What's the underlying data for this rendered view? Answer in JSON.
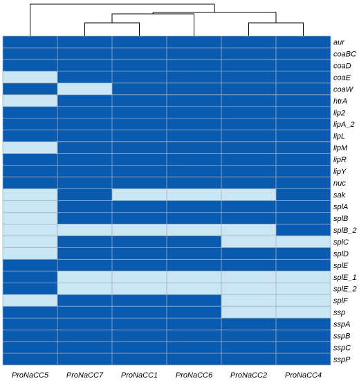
{
  "chart_data": {
    "type": "heatmap",
    "rows": [
      "aur",
      "coaBC",
      "coaD",
      "coaE",
      "coaW",
      "htrA",
      "lip2",
      "lipA_2",
      "lipL",
      "lipM",
      "lipR",
      "lipY",
      "nuc",
      "sak",
      "splA",
      "splB",
      "splB_2",
      "splC",
      "splD",
      "splE",
      "splE_1",
      "splE_2",
      "splF",
      "ssp",
      "sspA",
      "sspB",
      "sspC",
      "sspP"
    ],
    "columns": [
      "ProNaCC5",
      "ProNaCC7",
      "ProNaCC1",
      "ProNaCC6",
      "ProNaCC2",
      "ProNaCC4"
    ],
    "values": [
      [
        1,
        1,
        1,
        1,
        1,
        1
      ],
      [
        1,
        1,
        1,
        1,
        1,
        1
      ],
      [
        1,
        1,
        1,
        1,
        1,
        1
      ],
      [
        0,
        1,
        1,
        1,
        1,
        1
      ],
      [
        1,
        0,
        1,
        1,
        1,
        1
      ],
      [
        0,
        1,
        1,
        1,
        1,
        1
      ],
      [
        1,
        1,
        1,
        1,
        1,
        1
      ],
      [
        1,
        1,
        1,
        1,
        1,
        1
      ],
      [
        1,
        1,
        1,
        1,
        1,
        1
      ],
      [
        0,
        1,
        1,
        1,
        1,
        1
      ],
      [
        1,
        1,
        1,
        1,
        1,
        1
      ],
      [
        1,
        1,
        1,
        1,
        1,
        1
      ],
      [
        1,
        1,
        1,
        1,
        1,
        1
      ],
      [
        0,
        1,
        0,
        0,
        0,
        1
      ],
      [
        0,
        1,
        1,
        1,
        1,
        1
      ],
      [
        0,
        1,
        1,
        1,
        1,
        1
      ],
      [
        0,
        0,
        0,
        0,
        0,
        1
      ],
      [
        0,
        1,
        1,
        1,
        0,
        0
      ],
      [
        0,
        1,
        1,
        1,
        1,
        1
      ],
      [
        1,
        1,
        1,
        1,
        1,
        1
      ],
      [
        1,
        0,
        0,
        0,
        0,
        0
      ],
      [
        1,
        0,
        0,
        0,
        0,
        0
      ],
      [
        0,
        1,
        1,
        1,
        0,
        0
      ],
      [
        1,
        1,
        1,
        1,
        0,
        0
      ],
      [
        1,
        1,
        1,
        1,
        1,
        1
      ],
      [
        1,
        1,
        1,
        1,
        1,
        1
      ],
      [
        1,
        1,
        1,
        1,
        1,
        1
      ],
      [
        1,
        1,
        1,
        1,
        1,
        1
      ]
    ],
    "colors": {
      "present": "#0a5bb0",
      "absent": "#c9e6f2",
      "grid": "#9fb0c4",
      "dendrogram": "#000000"
    },
    "dendrogram": {
      "merges": [
        {
          "left": "ProNaCC7",
          "right": "ProNaCC1"
        },
        {
          "left": "ProNaCC2",
          "right": "ProNaCC4"
        },
        {
          "left": "ProNaCC7+ProNaCC1",
          "right": "ProNaCC6"
        },
        {
          "left": "ProNaCC7+ProNaCC1+ProNaCC6",
          "right": "ProNaCC2+ProNaCC4"
        },
        {
          "left": "ProNaCC5",
          "right": "ProNaCC7+ProNaCC1+ProNaCC6+ProNaCC2+ProNaCC4"
        }
      ]
    }
  }
}
